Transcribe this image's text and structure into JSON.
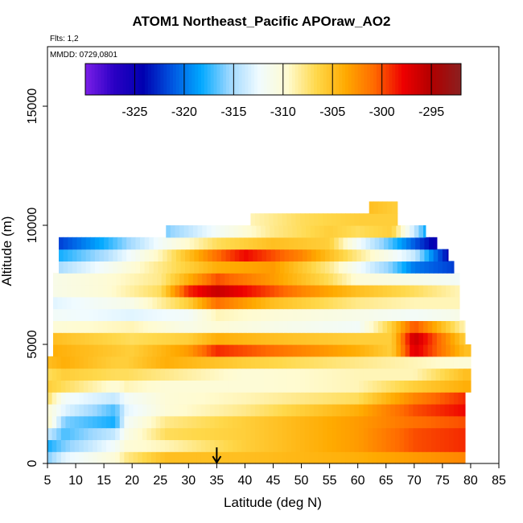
{
  "chart_data": {
    "type": "heatmap",
    "title": "ATOM1 Northeast_Pacific APOraw_AO2",
    "flights_label": "Flts: 1,2",
    "dates_label": "MMDD: 0729,0801",
    "xlabel": "Latitude (deg N)",
    "ylabel": "Altitude (m)",
    "xlim": [
      5,
      85
    ],
    "ylim": [
      0,
      17500
    ],
    "xticks": [
      "5",
      "10",
      "15",
      "20",
      "25",
      "30",
      "35",
      "40",
      "45",
      "50",
      "55",
      "60",
      "65",
      "70",
      "75",
      "80",
      "85"
    ],
    "yticks": [
      "0",
      "5000",
      "10000",
      "15000"
    ],
    "colorbar": {
      "range": [
        -330,
        -292
      ],
      "ticks": [
        "-325",
        "-320",
        "-315",
        "-310",
        "-305",
        "-300",
        "-295"
      ],
      "tick_values": [
        -325,
        -320,
        -315,
        -310,
        -305,
        -300,
        -295
      ],
      "colors": [
        "#7b1fe8",
        "#2a00c4",
        "#0000b0",
        "#0055e0",
        "#00a8ff",
        "#9ed8ff",
        "#f0fbff",
        "#fffbd0",
        "#ffd84a",
        "#ffaa00",
        "#ff6a00",
        "#ee0000",
        "#b00000",
        "#8b2020"
      ]
    },
    "profile_altitudes_m": [
      250,
      750,
      1250,
      1750,
      2250,
      2750,
      3250,
      3750,
      4250,
      4750,
      5250,
      5750,
      6250,
      6750,
      7250,
      7750,
      8250,
      8750,
      9250,
      9750,
      10250,
      10750
    ],
    "row_lat_range": [
      [
        5,
        79
      ],
      [
        5,
        79
      ],
      [
        5,
        79
      ],
      [
        5,
        79
      ],
      [
        5,
        79
      ],
      [
        5,
        79
      ],
      [
        5,
        80
      ],
      [
        5,
        80
      ],
      [
        5,
        80
      ],
      [
        6,
        80
      ],
      [
        6,
        79
      ],
      [
        6,
        79
      ],
      [
        6,
        78
      ],
      [
        6,
        78
      ],
      [
        6,
        78
      ],
      [
        6,
        78
      ],
      [
        7,
        77
      ],
      [
        7,
        76
      ],
      [
        7,
        74
      ],
      [
        26,
        72
      ],
      [
        41,
        67
      ],
      [
        62,
        67
      ]
    ],
    "altitude_profiles": [
      {
        "lat": [
          5,
          8,
          17,
          19,
          26,
          40,
          60,
          70,
          79
        ],
        "value": [
          -316,
          -313,
          -310,
          -308,
          -305,
          -305,
          -304,
          -303,
          -302
        ]
      },
      {
        "lat": [
          5,
          8,
          17,
          19,
          26,
          40,
          60,
          70,
          79
        ],
        "value": [
          -318,
          -316,
          -312,
          -310,
          -309,
          -306,
          -303,
          -300,
          -299
        ]
      },
      {
        "lat": [
          5,
          8,
          17,
          19,
          26,
          40,
          60,
          70,
          79
        ],
        "value": [
          -314,
          -317,
          -314,
          -311,
          -307,
          -306,
          -303,
          -300,
          -299
        ]
      },
      {
        "lat": [
          5,
          8,
          17,
          19,
          26,
          40,
          60,
          70,
          79
        ],
        "value": [
          -309,
          -316,
          -318,
          -312,
          -308,
          -306,
          -303,
          -301,
          -300
        ]
      },
      {
        "lat": [
          5,
          8,
          17,
          19,
          26,
          40,
          60,
          70,
          79
        ],
        "value": [
          -310,
          -313,
          -317,
          -313,
          -310,
          -308,
          -304,
          -300,
          -298
        ]
      },
      {
        "lat": [
          5,
          8,
          17,
          19,
          26,
          40,
          60,
          70,
          79
        ],
        "value": [
          -307,
          -312,
          -314,
          -312,
          -310,
          -309,
          -307,
          -302,
          -299
        ]
      },
      {
        "lat": [
          5,
          8,
          17,
          19,
          26,
          40,
          60,
          70,
          79
        ],
        "value": [
          -306,
          -307,
          -310,
          -309,
          -310,
          -310,
          -309,
          -306,
          -304
        ]
      },
      {
        "lat": [
          5,
          8,
          17,
          19,
          26,
          40,
          60,
          70,
          79
        ],
        "value": [
          -307,
          -306,
          -307,
          -307,
          -308,
          -310,
          -309,
          -309,
          -305
        ]
      },
      {
        "lat": [
          5,
          8,
          17,
          19,
          26,
          40,
          60,
          70,
          79
        ],
        "value": [
          -305,
          -304,
          -306,
          -306,
          -304,
          -306,
          -308,
          -309,
          -310
        ]
      },
      {
        "lat": [
          6,
          20,
          30,
          35,
          45,
          60,
          66,
          70,
          79
        ],
        "value": [
          -304,
          -306,
          -303,
          -299,
          -301,
          -304,
          -306,
          -297,
          -305
        ]
      },
      {
        "lat": [
          6,
          20,
          30,
          35,
          45,
          60,
          66,
          70,
          79
        ],
        "value": [
          -305,
          -307,
          -306,
          -304,
          -305,
          -306,
          -306,
          -296,
          -306
        ]
      },
      {
        "lat": [
          6,
          20,
          30,
          35,
          45,
          60,
          66,
          70,
          79
        ],
        "value": [
          -310,
          -309,
          -311,
          -310,
          -311,
          -312,
          -306,
          -300,
          -309
        ]
      },
      {
        "lat": [
          6,
          20,
          30,
          35,
          45,
          60,
          70,
          78
        ],
        "value": [
          -312,
          -313,
          -312,
          -309,
          -310,
          -311,
          -312,
          -311
        ]
      },
      {
        "lat": [
          6,
          20,
          30,
          35,
          45,
          60,
          70,
          78
        ],
        "value": [
          -313,
          -311,
          -306,
          -301,
          -305,
          -308,
          -309,
          -309
        ]
      },
      {
        "lat": [
          6,
          15,
          25,
          30,
          35,
          40,
          50,
          60,
          70,
          78
        ],
        "value": [
          -311,
          -310,
          -307,
          -299,
          -296,
          -298,
          -302,
          -305,
          -307,
          -309
        ]
      },
      {
        "lat": [
          6,
          15,
          25,
          30,
          35,
          45,
          55,
          60,
          78
        ],
        "value": [
          -311,
          -310,
          -308,
          -304,
          -300,
          -303,
          -307,
          -310,
          -312
        ]
      },
      {
        "lat": [
          7,
          15,
          25,
          35,
          45,
          55,
          60,
          66,
          70,
          77
        ],
        "value": [
          -315,
          -312,
          -308,
          -304,
          -303,
          -308,
          -312,
          -316,
          -320,
          -322
        ]
      },
      {
        "lat": [
          7,
          15,
          25,
          35,
          40,
          50,
          60,
          70,
          76
        ],
        "value": [
          -318,
          -315,
          -309,
          -301,
          -298,
          -302,
          -308,
          -314,
          -324
        ]
      },
      {
        "lat": [
          7,
          15,
          25,
          35,
          45,
          55,
          60,
          66,
          74
        ],
        "value": [
          -322,
          -318,
          -312,
          -307,
          -305,
          -306,
          -312,
          -317,
          -325
        ]
      },
      {
        "lat": [
          26,
          35,
          45,
          55,
          60,
          66,
          72
        ],
        "value": [
          -316,
          -312,
          -308,
          -306,
          -307,
          -306,
          -318
        ]
      },
      {
        "lat": [
          41,
          50,
          60,
          67
        ],
        "value": [
          -309,
          -307,
          -306,
          -306
        ]
      },
      {
        "lat": [
          62,
          67
        ],
        "value": [
          -305,
          -306
        ]
      }
    ],
    "annotation": {
      "type": "arrow",
      "lat": 35,
      "description": "arrow marker at x-axis"
    }
  }
}
